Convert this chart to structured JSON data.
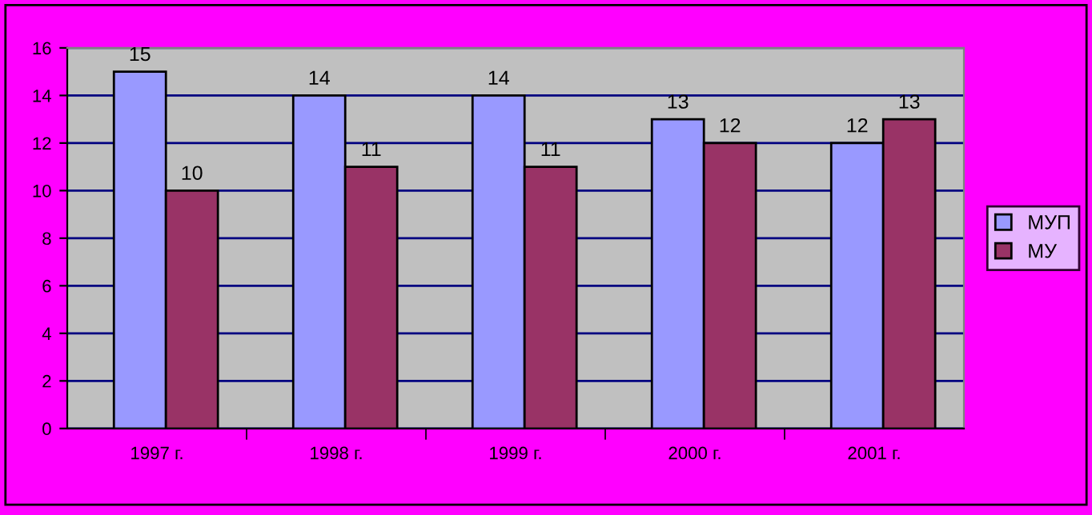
{
  "chart_data": {
    "type": "bar",
    "categories": [
      "1997 г.",
      "1998 г.",
      "1999 г.",
      "2000 г.",
      "2001 г."
    ],
    "series": [
      {
        "name": "МУП",
        "color": "#9999ff",
        "values": [
          15,
          14,
          14,
          13,
          12
        ]
      },
      {
        "name": "МУ",
        "color": "#993366",
        "values": [
          10,
          11,
          11,
          12,
          13
        ]
      }
    ],
    "ylim": [
      0,
      16
    ],
    "yticks": [
      0,
      2,
      4,
      6,
      8,
      10,
      12,
      14,
      16
    ],
    "grid": "y",
    "legend": "right",
    "data_labels": true
  }
}
